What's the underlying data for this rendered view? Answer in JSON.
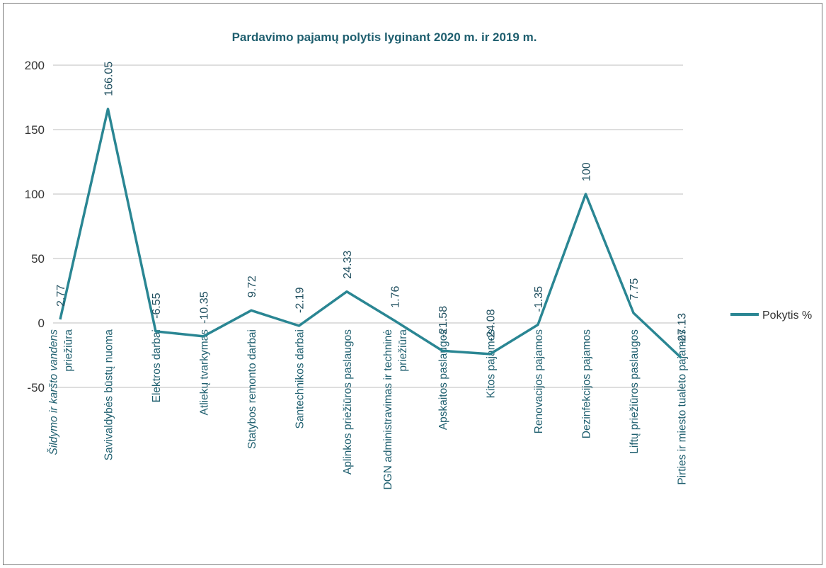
{
  "chart_data": {
    "type": "line",
    "title": "Pardavimo pajamų polytis lyginant 2020 m. ir 2019 m.",
    "xlabel": "",
    "ylabel": "",
    "ylim": [
      -50,
      200
    ],
    "yticks": [
      200,
      150,
      100,
      50,
      0,
      -50
    ],
    "grid": true,
    "legend_position": "right",
    "series_color": "#2a8693",
    "categories": [
      "Šildymo ir karšto vandens priežiūra",
      "Savivaldybės būstų nuoma",
      "Elektros darbai",
      "Atliekų tvarkymas",
      "Statybos remonto darbai",
      "Santechnikos darbai",
      "Aplinkos priežiūros paslaugos",
      "DGN administravimas ir techninė priežiūra",
      "Apskaitos paslaugos",
      "Kitos pajamos",
      "Renovacijos pajamos",
      "Dezinfekcijos pajamos",
      "Liftų priežiūros paslaugos",
      "Pirties ir miesto tualeto pajamos"
    ],
    "category_lines": [
      [
        "Šildymo ir karšto vandens",
        "priežiūra"
      ],
      [
        "Savivaldybės būstų nuoma"
      ],
      [
        "Elektros darbai"
      ],
      [
        "Atliekų tvarkymas"
      ],
      [
        "Statybos remonto darbai"
      ],
      [
        "Santechnikos darbai"
      ],
      [
        "Aplinkos priežiūros paslaugos"
      ],
      [
        "DGN administravimas ir techninė",
        "priežiūra"
      ],
      [
        "Apskaitos paslaugos"
      ],
      [
        "Kitos pajamos"
      ],
      [
        "Renovacijos pajamos"
      ],
      [
        "Dezinfekcijos pajamos"
      ],
      [
        "Liftų priežiūros paslaugos"
      ],
      [
        "Pirties ir miesto tualeto pajamos"
      ]
    ],
    "series": [
      {
        "name": "Pokytis %",
        "values": [
          2.77,
          166.05,
          -6.55,
          -10.35,
          9.72,
          -2.19,
          24.33,
          1.76,
          -21.58,
          -24.08,
          -1.35,
          100,
          7.75,
          -27.13
        ],
        "labels": [
          "2.77",
          "166.05",
          "-6.55",
          "-10.35",
          "9.72",
          "-2.19",
          "24.33",
          "1.76",
          "-21.58",
          "-24.08",
          "-1.35",
          "100",
          "7.75",
          "-27.13"
        ]
      }
    ]
  }
}
